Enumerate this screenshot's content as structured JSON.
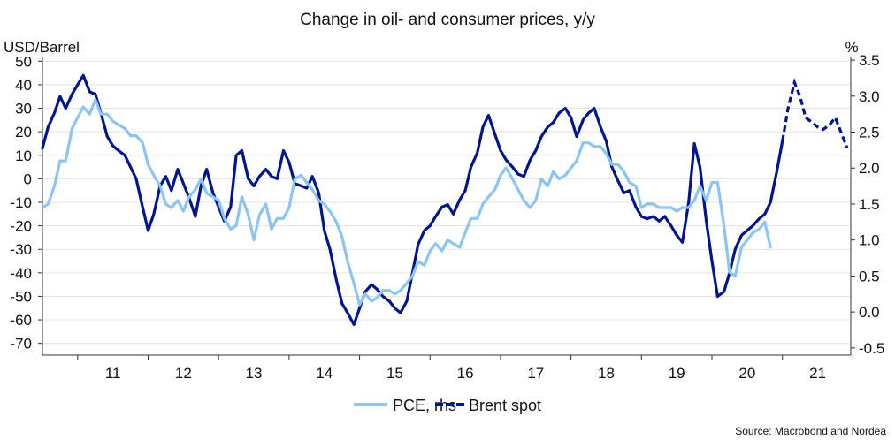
{
  "chart_data": {
    "type": "line",
    "title": "Change in oil- and consumer prices, y/y",
    "ylabel_left": "USD/Barrel",
    "ylabel_right": "%",
    "source": "Source: Macrobond and Nordea",
    "x_categories": [
      "11",
      "12",
      "13",
      "14",
      "15",
      "16",
      "17",
      "18",
      "19",
      "20",
      "21"
    ],
    "xlim": [
      2010.5,
      2021.97
    ],
    "ylim_left": [
      -75,
      52
    ],
    "yticks_left": [
      50,
      40,
      30,
      20,
      10,
      0,
      -10,
      -20,
      -30,
      -40,
      -50,
      -60,
      -70
    ],
    "ylim_right": [
      -0.6,
      3.55
    ],
    "yticks_right": [
      "3.5",
      "3.0",
      "2.5",
      "2.0",
      "1.5",
      "1.0",
      "0.5",
      "0.0",
      "-0.5"
    ],
    "yticks_right_values": [
      3.5,
      3.0,
      2.5,
      2.0,
      1.5,
      1.0,
      0.5,
      0.0,
      -0.5
    ],
    "grid": "horizontal",
    "legend_position": "bottom-center",
    "colors": {
      "pce": "#8cc4f2",
      "brent": "#00158f"
    },
    "series": [
      {
        "name": "PCE, rhs",
        "axis": "right",
        "style": "solid",
        "color": "#8cc4f2",
        "x": [
          2010.5,
          2010.58,
          2010.67,
          2010.75,
          2010.83,
          2010.92,
          2011.0,
          2011.08,
          2011.17,
          2011.25,
          2011.33,
          2011.42,
          2011.5,
          2011.58,
          2011.67,
          2011.75,
          2011.83,
          2011.92,
          2012.0,
          2012.08,
          2012.17,
          2012.25,
          2012.33,
          2012.42,
          2012.5,
          2012.58,
          2012.67,
          2012.75,
          2012.83,
          2012.92,
          2013.0,
          2013.08,
          2013.17,
          2013.25,
          2013.33,
          2013.42,
          2013.5,
          2013.58,
          2013.67,
          2013.75,
          2013.83,
          2013.92,
          2014.0,
          2014.08,
          2014.17,
          2014.25,
          2014.33,
          2014.42,
          2014.5,
          2014.58,
          2014.67,
          2014.75,
          2014.83,
          2014.92,
          2015.0,
          2015.08,
          2015.17,
          2015.25,
          2015.33,
          2015.42,
          2015.5,
          2015.58,
          2015.67,
          2015.75,
          2015.83,
          2015.92,
          2016.0,
          2016.08,
          2016.17,
          2016.25,
          2016.33,
          2016.42,
          2016.5,
          2016.58,
          2016.67,
          2016.75,
          2016.83,
          2016.92,
          2017.0,
          2017.08,
          2017.17,
          2017.25,
          2017.33,
          2017.42,
          2017.5,
          2017.58,
          2017.67,
          2017.75,
          2017.83,
          2017.92,
          2018.0,
          2018.08,
          2018.17,
          2018.25,
          2018.33,
          2018.42,
          2018.5,
          2018.58,
          2018.67,
          2018.75,
          2018.83,
          2018.92,
          2019.0,
          2019.08,
          2019.17,
          2019.25,
          2019.33,
          2019.42,
          2019.5,
          2019.58,
          2019.67,
          2019.75,
          2019.83,
          2019.92,
          2020.0,
          2020.08,
          2020.17,
          2020.25,
          2020.33,
          2020.42,
          2020.5,
          2020.58,
          2020.67,
          2020.75,
          2020.83
        ],
        "values": [
          1.45,
          1.5,
          1.75,
          2.1,
          2.1,
          2.55,
          2.7,
          2.85,
          2.75,
          2.95,
          2.75,
          2.75,
          2.65,
          2.6,
          2.55,
          2.45,
          2.45,
          2.35,
          2.05,
          1.9,
          1.75,
          1.5,
          1.45,
          1.55,
          1.4,
          1.6,
          1.7,
          1.85,
          1.65,
          1.6,
          1.55,
          1.3,
          1.15,
          1.2,
          1.6,
          1.35,
          1.0,
          1.35,
          1.5,
          1.15,
          1.3,
          1.3,
          1.45,
          1.85,
          1.9,
          1.8,
          1.7,
          1.55,
          1.5,
          1.4,
          1.25,
          1.05,
          0.7,
          0.4,
          0.1,
          0.25,
          0.15,
          0.2,
          0.3,
          0.3,
          0.25,
          0.3,
          0.4,
          0.5,
          0.7,
          0.65,
          0.85,
          0.95,
          0.85,
          1.0,
          0.95,
          0.9,
          1.1,
          1.3,
          1.3,
          1.5,
          1.6,
          1.7,
          1.9,
          2.0,
          1.85,
          1.7,
          1.55,
          1.45,
          1.55,
          1.85,
          1.75,
          1.95,
          1.85,
          1.9,
          2.0,
          2.1,
          2.35,
          2.35,
          2.3,
          2.3,
          2.2,
          2.05,
          2.05,
          1.95,
          1.8,
          1.75,
          1.45,
          1.5,
          1.5,
          1.45,
          1.45,
          1.45,
          1.4,
          1.45,
          1.45,
          1.55,
          1.75,
          1.55,
          1.8,
          1.8,
          1.2,
          0.55,
          0.5,
          0.9,
          1.0,
          1.1,
          1.15,
          1.25,
          0.9
        ]
      },
      {
        "name": "Brent spot",
        "axis": "left",
        "style": "solid-then-dashed",
        "dashed_from": 2021.0,
        "color": "#00158f",
        "x": [
          2010.5,
          2010.58,
          2010.67,
          2010.75,
          2010.83,
          2010.92,
          2011.0,
          2011.08,
          2011.17,
          2011.25,
          2011.33,
          2011.42,
          2011.5,
          2011.58,
          2011.67,
          2011.75,
          2011.83,
          2011.92,
          2012.0,
          2012.08,
          2012.17,
          2012.25,
          2012.33,
          2012.42,
          2012.5,
          2012.58,
          2012.67,
          2012.75,
          2012.83,
          2012.92,
          2013.0,
          2013.08,
          2013.17,
          2013.25,
          2013.33,
          2013.42,
          2013.5,
          2013.58,
          2013.67,
          2013.75,
          2013.83,
          2013.92,
          2014.0,
          2014.08,
          2014.17,
          2014.25,
          2014.33,
          2014.42,
          2014.5,
          2014.58,
          2014.67,
          2014.75,
          2014.83,
          2014.92,
          2015.0,
          2015.08,
          2015.17,
          2015.25,
          2015.33,
          2015.42,
          2015.5,
          2015.58,
          2015.67,
          2015.75,
          2015.83,
          2015.92,
          2016.0,
          2016.08,
          2016.17,
          2016.25,
          2016.33,
          2016.42,
          2016.5,
          2016.58,
          2016.67,
          2016.75,
          2016.83,
          2016.92,
          2017.0,
          2017.08,
          2017.17,
          2017.25,
          2017.33,
          2017.42,
          2017.5,
          2017.58,
          2017.67,
          2017.75,
          2017.83,
          2017.92,
          2018.0,
          2018.08,
          2018.17,
          2018.25,
          2018.33,
          2018.42,
          2018.5,
          2018.58,
          2018.67,
          2018.75,
          2018.83,
          2018.92,
          2019.0,
          2019.08,
          2019.17,
          2019.25,
          2019.33,
          2019.42,
          2019.5,
          2019.58,
          2019.67,
          2019.75,
          2019.83,
          2019.92,
          2020.0,
          2020.08,
          2020.17,
          2020.25,
          2020.33,
          2020.42,
          2020.5,
          2020.58,
          2020.67,
          2020.75,
          2020.83,
          2020.92,
          2021.0,
          2021.08,
          2021.17,
          2021.25,
          2021.33,
          2021.42,
          2021.5,
          2021.58,
          2021.67,
          2021.75,
          2021.83,
          2021.92
        ],
        "values": [
          13,
          22,
          28,
          35,
          30,
          36,
          40,
          44,
          37,
          36,
          28,
          18,
          14,
          12,
          10,
          5,
          0,
          -12,
          -22,
          -15,
          -3,
          1,
          -5,
          4,
          -2,
          -8,
          -16,
          -3,
          4,
          -6,
          -12,
          -18,
          -12,
          10,
          12,
          0,
          -3,
          1,
          4,
          1,
          0,
          12,
          7,
          -2,
          -3,
          -4,
          1,
          -6,
          -22,
          -30,
          -43,
          -53,
          -57,
          -62,
          -55,
          -48,
          -45,
          -47,
          -50,
          -52,
          -55,
          -57,
          -52,
          -40,
          -28,
          -22,
          -20,
          -16,
          -12,
          -11,
          -15,
          -9,
          -5,
          5,
          11,
          22,
          27,
          19,
          12,
          8,
          5,
          2,
          1,
          8,
          12,
          18,
          22,
          24,
          28,
          30,
          26,
          18,
          25,
          28,
          30,
          22,
          16,
          5,
          -1,
          -6,
          -5,
          -12,
          -16,
          -17,
          -16,
          -18,
          -16,
          -20,
          -24,
          -27,
          -10,
          15,
          5,
          -18,
          -35,
          -50,
          -48,
          -40,
          -30,
          -24,
          -22,
          -20,
          -17,
          -15,
          -10,
          3,
          16,
          30,
          41,
          35,
          26,
          24,
          22,
          21,
          23,
          26,
          20,
          13
        ]
      }
    ]
  }
}
